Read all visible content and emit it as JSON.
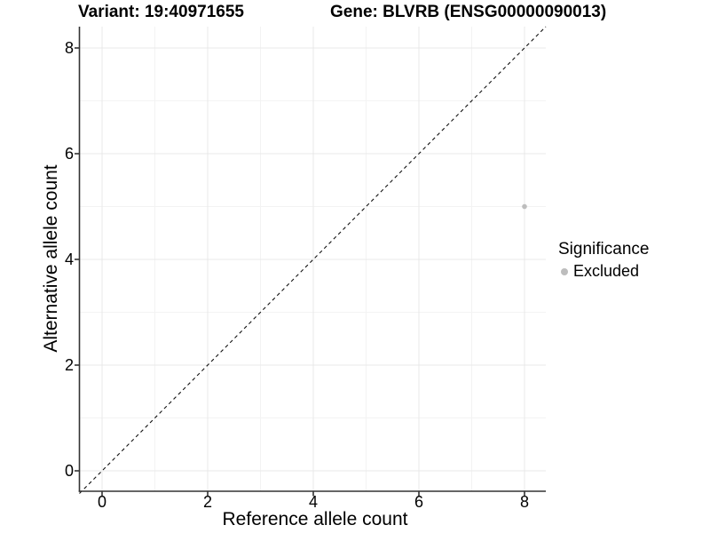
{
  "chart_data": {
    "type": "scatter",
    "titles": {
      "left": "Variant: 19:40971655",
      "right": "Gene: BLVRB (ENSG00000090013)"
    },
    "xlabel": "Reference allele count",
    "ylabel": "Alternative allele count",
    "xlim": [
      -0.43,
      8.42
    ],
    "ylim": [
      -0.39,
      8.4
    ],
    "xticks": [
      0,
      2,
      4,
      6,
      8
    ],
    "yticks": [
      0,
      2,
      4,
      6,
      8
    ],
    "minor_xticks": [
      1,
      3,
      5,
      7
    ],
    "minor_yticks": [
      1,
      3,
      5,
      7
    ],
    "grid": "major and minor gridlines on white background",
    "series": [
      {
        "name": "Excluded",
        "color": "#bdbdbd",
        "points": [
          {
            "x": 8,
            "y": 5
          }
        ]
      }
    ],
    "reference_line": {
      "kind": "identity y=x",
      "slope": 1,
      "intercept": 0,
      "style": "dashed",
      "color": "#111111"
    },
    "legend": {
      "title": "Significance",
      "position": "right",
      "items": [
        {
          "label": "Excluded",
          "color": "#bdbdbd"
        }
      ]
    },
    "colors": {
      "axis": "#333333",
      "grid_major": "#e8e8e8",
      "grid_minor": "#f3f3f3",
      "background": "#ffffff",
      "text": "#000000"
    }
  }
}
